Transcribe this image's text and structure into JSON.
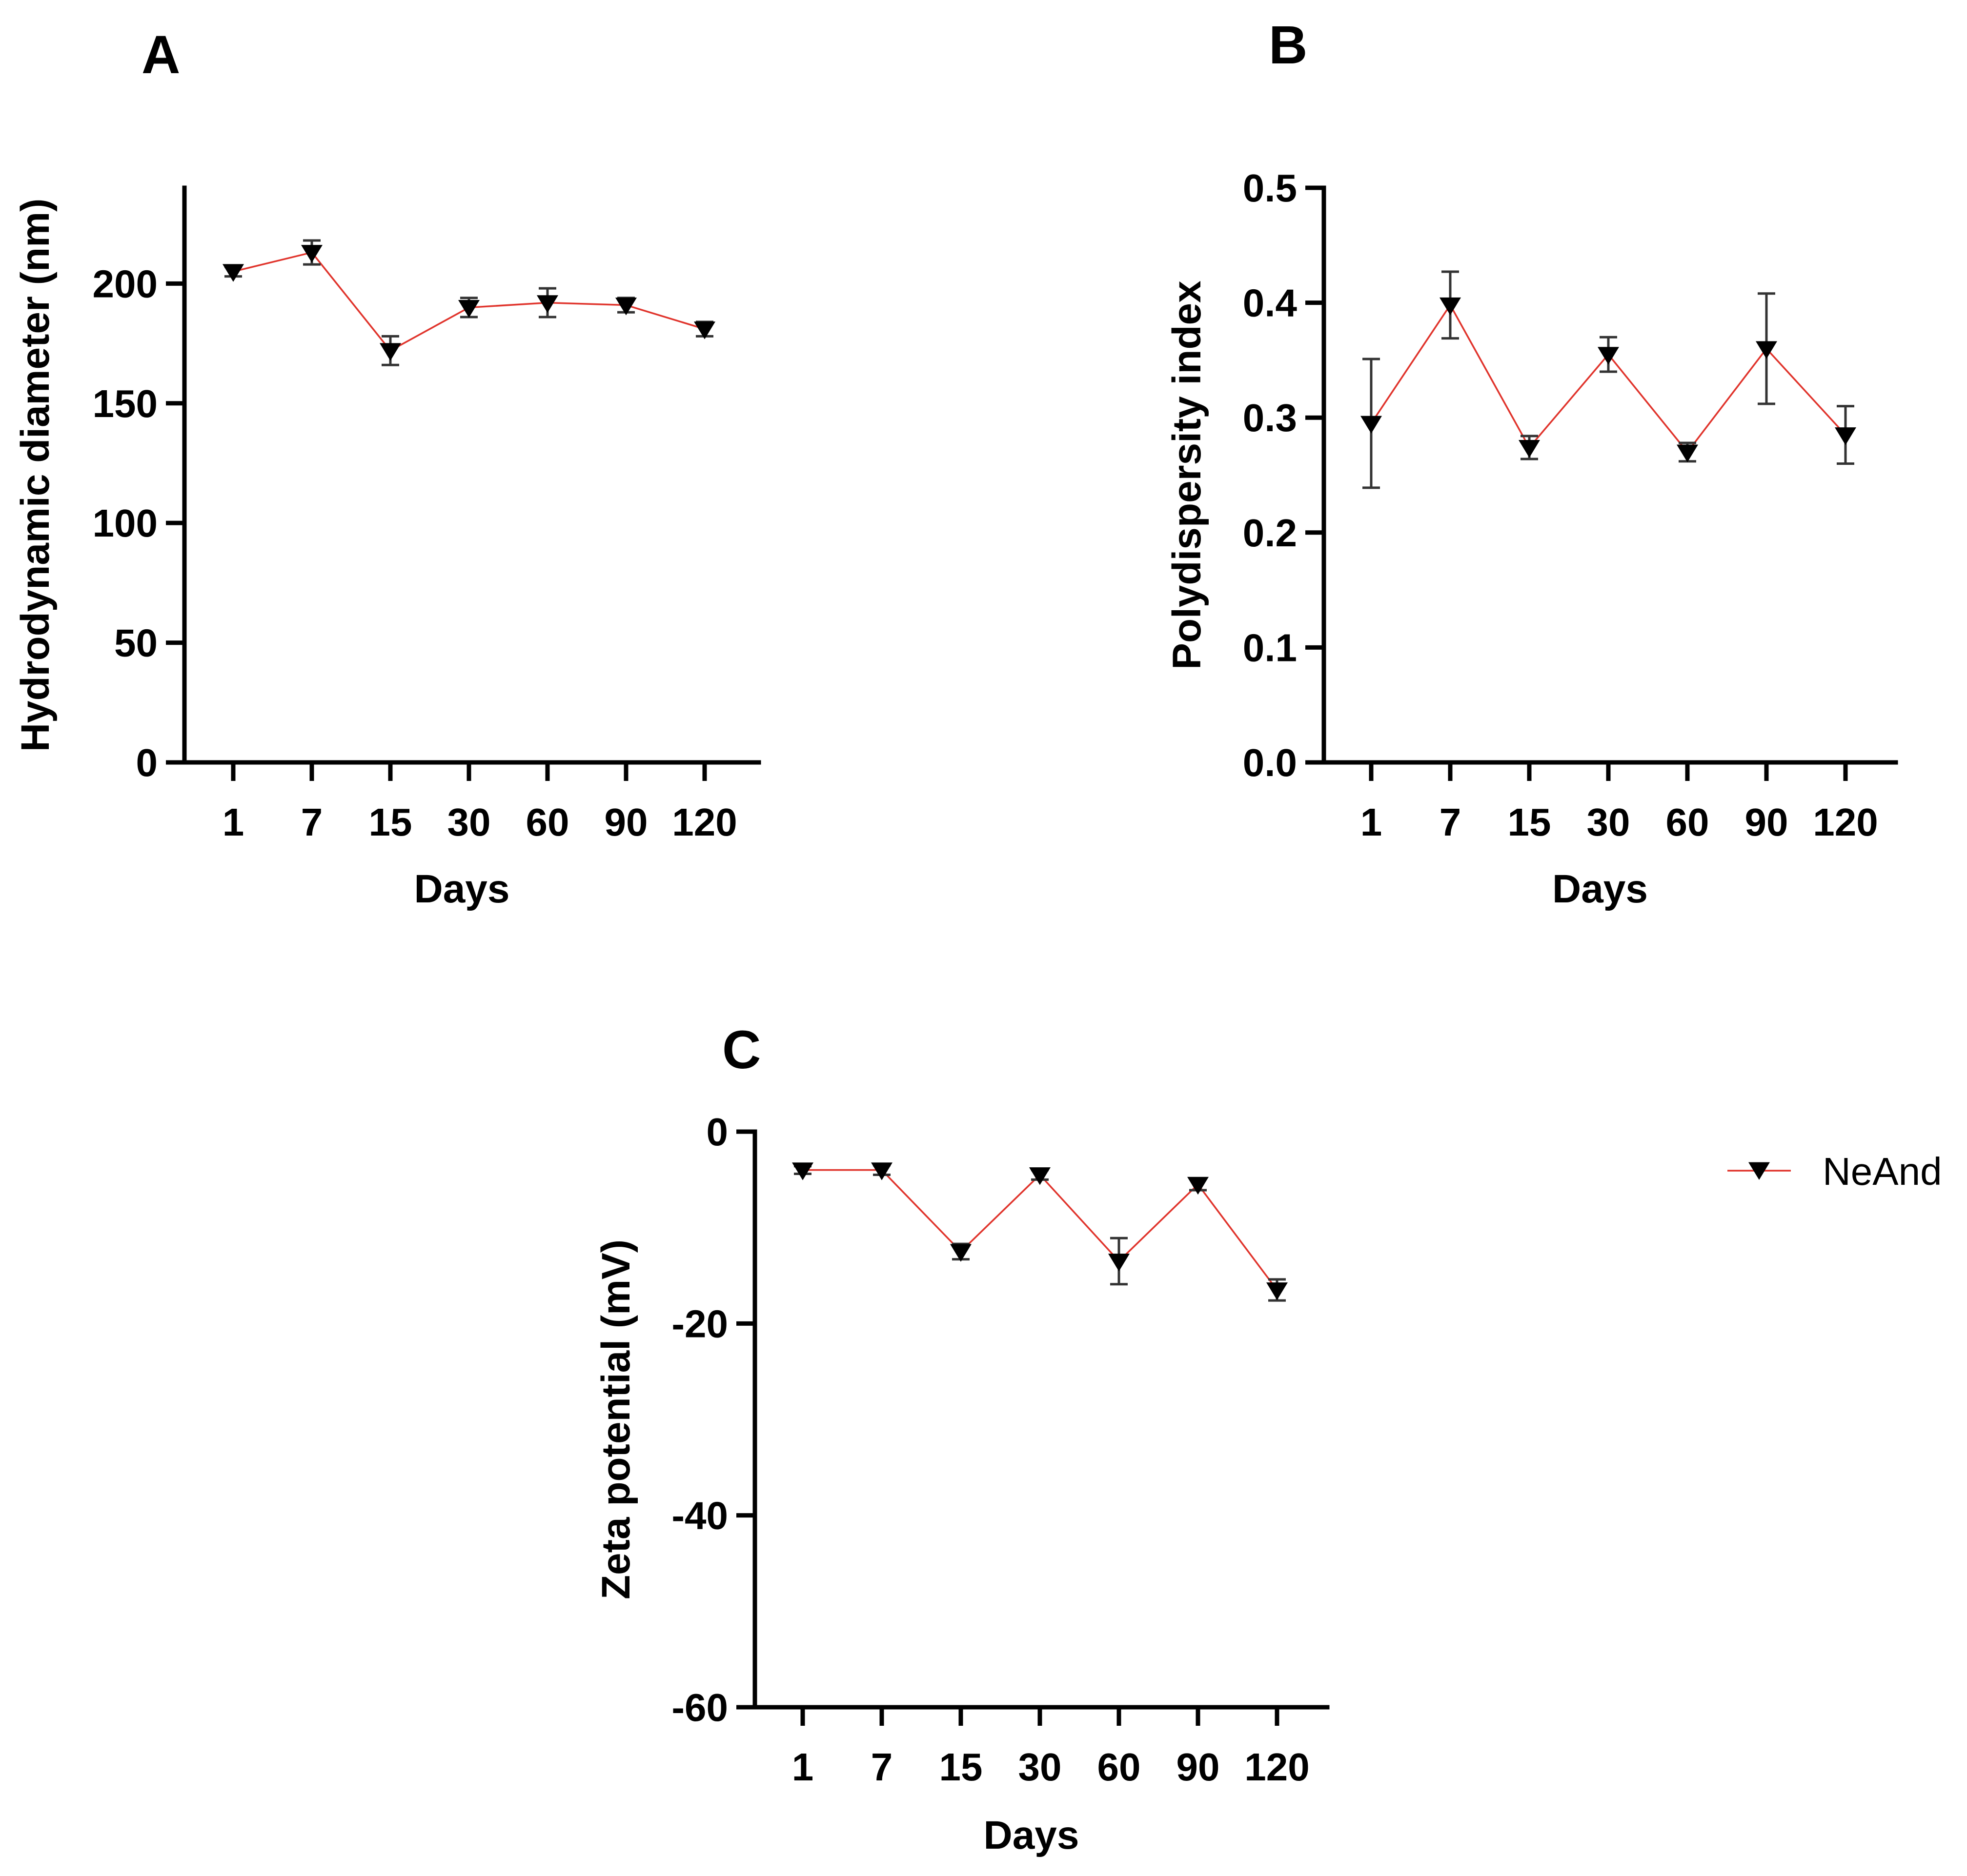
{
  "colors": {
    "series_line": "#e0342c",
    "marker": "#000000",
    "axis": "#000000"
  },
  "legend": {
    "label": "NeAnd",
    "marker": "down-triangle-icon"
  },
  "chart_data": [
    {
      "panel": "A",
      "type": "line",
      "categories": [
        "1",
        "7",
        "15",
        "30",
        "60",
        "90",
        "120"
      ],
      "series": [
        {
          "name": "NeAnd",
          "values": [
            205,
            213,
            172,
            190,
            192,
            191,
            181
          ],
          "errors": [
            2,
            5,
            6,
            4,
            6,
            3,
            3
          ]
        }
      ],
      "xlabel": "Days",
      "ylabel": "Hydrodynamic diameter (nm)",
      "ylim": [
        0,
        240
      ],
      "yticks": [
        0,
        50,
        100,
        150,
        200
      ],
      "ytick_labels": [
        "0",
        "50",
        "100",
        "150",
        "200"
      ],
      "grid": false
    },
    {
      "panel": "B",
      "type": "line",
      "categories": [
        "1",
        "7",
        "15",
        "30",
        "60",
        "90",
        "120"
      ],
      "series": [
        {
          "name": "NeAnd",
          "values": [
            0.295,
            0.398,
            0.274,
            0.355,
            0.27,
            0.36,
            0.285
          ],
          "errors": [
            0.056,
            0.029,
            0.01,
            0.015,
            0.008,
            0.048,
            0.025
          ]
        }
      ],
      "xlabel": "Days",
      "ylabel": "Polydispersity index",
      "ylim": [
        0,
        0.5
      ],
      "yticks": [
        0,
        0.1,
        0.2,
        0.3,
        0.4,
        0.5
      ],
      "ytick_labels": [
        "0.0",
        "0.1",
        "0.2",
        "0.3",
        "0.4",
        "0.5"
      ],
      "grid": false
    },
    {
      "panel": "C",
      "type": "line",
      "categories": [
        "1",
        "7",
        "15",
        "30",
        "60",
        "90",
        "120"
      ],
      "series": [
        {
          "name": "NeAnd",
          "values": [
            -4,
            -4,
            -12.5,
            -4.5,
            -13.5,
            -5.5,
            -16.5
          ],
          "errors": [
            0.4,
            0.5,
            0.8,
            0.5,
            2.4,
            0.6,
            1.1
          ]
        }
      ],
      "xlabel": "Days",
      "ylabel": "Zeta potential (mV)",
      "ylim": [
        -60,
        0
      ],
      "yticks": [
        -60,
        -40,
        -20,
        0
      ],
      "ytick_labels": [
        "-60",
        "-40",
        "-20",
        "0"
      ],
      "grid": false,
      "legend": "right"
    }
  ]
}
